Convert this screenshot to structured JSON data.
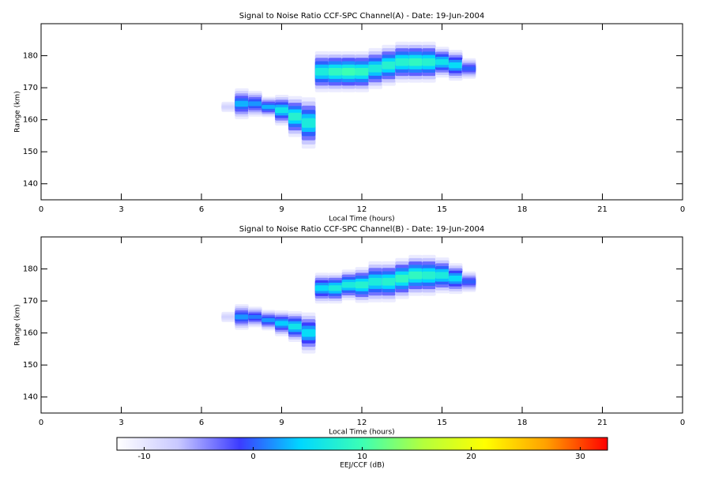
{
  "chart_data": [
    {
      "type": "echo",
      "title": "Signal to Noise Ratio CCF-SPC Channel(A) - Date: 19-Jun-2004",
      "x_label": "Local Time (hours)",
      "y_label": "Range (km)",
      "xlim": [
        0,
        24
      ],
      "xticks": [
        0,
        3,
        6,
        9,
        12,
        15,
        18,
        21,
        {
          "value": 24,
          "label": "0"
        }
      ],
      "ylim": [
        135,
        190
      ],
      "yticks": [
        140,
        150,
        160,
        170,
        180
      ],
      "x": [
        7.0,
        7.5,
        8.0,
        8.5,
        9.0,
        9.5,
        10.0,
        10.5,
        11.0,
        11.5,
        12.0,
        12.5,
        13.0,
        13.5,
        14.0,
        14.5,
        15.0,
        15.5,
        16.0
      ],
      "center": [
        164,
        165,
        165,
        164,
        163,
        161,
        159,
        175,
        175,
        175,
        175,
        176,
        177,
        178,
        178,
        178,
        178,
        177,
        176
      ],
      "half_width": [
        1,
        3,
        2.5,
        2,
        3,
        4,
        5,
        4,
        4,
        4,
        4,
        4,
        4,
        4,
        4,
        4,
        3,
        3,
        2
      ],
      "snr": [
        -8,
        3,
        2,
        3,
        6,
        8,
        7,
        7,
        9,
        10,
        9,
        7,
        8,
        8,
        9,
        8,
        6,
        5,
        0
      ]
    },
    {
      "type": "echo",
      "title": "Signal to Noise Ratio CCF-SPC Channel(B) - Date: 19-Jun-2004",
      "x_label": "Local Time (hours)",
      "y_label": "Range (km)",
      "xlim": [
        0,
        24
      ],
      "xticks": [
        0,
        3,
        6,
        9,
        12,
        15,
        18,
        21,
        {
          "value": 24,
          "label": "0"
        }
      ],
      "ylim": [
        135,
        190
      ],
      "yticks": [
        140,
        150,
        160,
        170,
        180
      ],
      "x": [
        7.0,
        7.5,
        8.0,
        8.5,
        9.0,
        9.5,
        10.0,
        10.5,
        11.0,
        11.5,
        12.0,
        12.5,
        13.0,
        13.5,
        14.0,
        14.5,
        15.0,
        15.5,
        16.0
      ],
      "center": [
        165,
        165,
        165,
        164,
        163,
        162,
        160,
        174,
        174,
        175,
        175,
        176,
        176,
        177,
        178,
        178,
        178,
        177,
        176
      ],
      "half_width": [
        1,
        2.5,
        2,
        2,
        2.5,
        3,
        4,
        3,
        3,
        3,
        3.5,
        4,
        4,
        4,
        4,
        4,
        3.5,
        3,
        2
      ],
      "snr": [
        -8,
        2,
        1,
        2,
        4,
        6,
        5,
        5,
        7,
        7,
        8,
        7,
        8,
        9,
        9,
        8,
        7,
        5,
        0
      ]
    },
    {
      "type": "colorbar",
      "label": "EEJ/CCF (dB)",
      "clim": [
        -12.5,
        32.5
      ],
      "ticks": [
        -10,
        0,
        10,
        20,
        30
      ],
      "colormap": [
        "#ffffff",
        "#c8c8ff",
        "#3c3cff",
        "#00d8ff",
        "#3cffb4",
        "#b4ff3c",
        "#ffff00",
        "#ffa000",
        "#ff0000"
      ]
    }
  ]
}
